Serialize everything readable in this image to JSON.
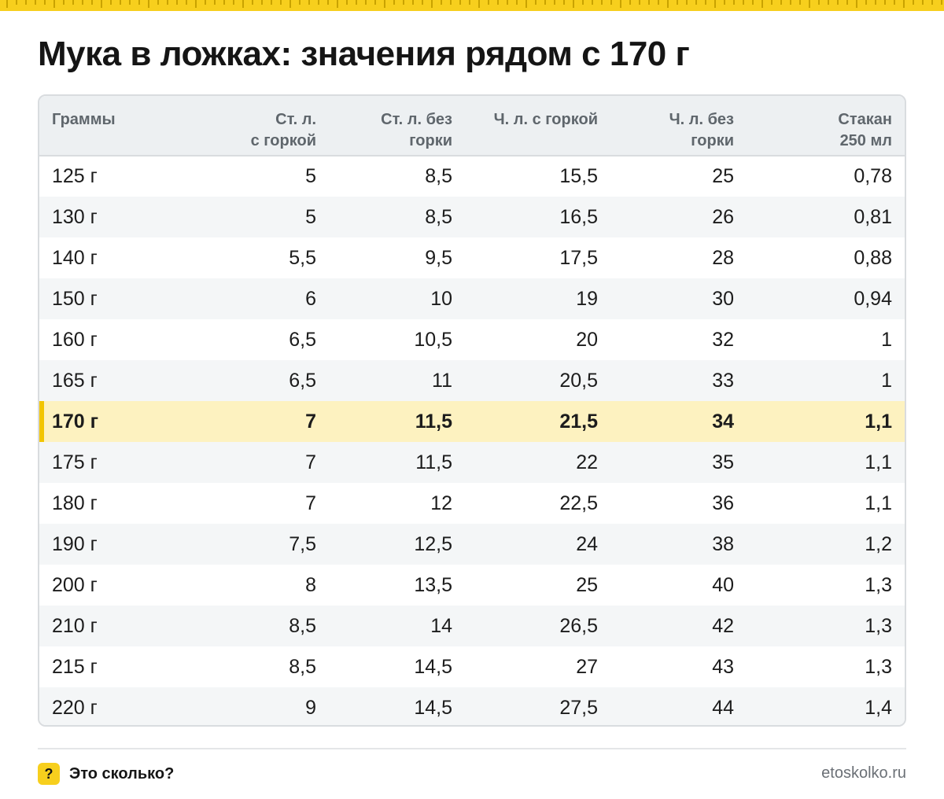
{
  "title": "Мука в ложках: значения рядом с 170 г",
  "colors": {
    "accent": "#f7cf1d",
    "highlight_row": "#fdf2c0",
    "header_bg": "#edf0f2",
    "stripe_bg": "#f4f6f7"
  },
  "table": {
    "headers": [
      [
        "Граммы"
      ],
      [
        "Ст. л.",
        "с горкой"
      ],
      [
        "Ст. л. без",
        "горки"
      ],
      [
        "Ч. л. с горкой"
      ],
      [
        "Ч. л. без",
        "горки"
      ],
      [
        "Стакан",
        "250 мл"
      ]
    ],
    "highlight_row_index": 6,
    "rows": [
      [
        "125 г",
        "5",
        "8,5",
        "15,5",
        "25",
        "0,78"
      ],
      [
        "130 г",
        "5",
        "8,5",
        "16,5",
        "26",
        "0,81"
      ],
      [
        "140 г",
        "5,5",
        "9,5",
        "17,5",
        "28",
        "0,88"
      ],
      [
        "150 г",
        "6",
        "10",
        "19",
        "30",
        "0,94"
      ],
      [
        "160 г",
        "6,5",
        "10,5",
        "20",
        "32",
        "1"
      ],
      [
        "165 г",
        "6,5",
        "11",
        "20,5",
        "33",
        "1"
      ],
      [
        "170 г",
        "7",
        "11,5",
        "21,5",
        "34",
        "1,1"
      ],
      [
        "175 г",
        "7",
        "11,5",
        "22",
        "35",
        "1,1"
      ],
      [
        "180 г",
        "7",
        "12",
        "22,5",
        "36",
        "1,1"
      ],
      [
        "190 г",
        "7,5",
        "12,5",
        "24",
        "38",
        "1,2"
      ],
      [
        "200 г",
        "8",
        "13,5",
        "25",
        "40",
        "1,3"
      ],
      [
        "210 г",
        "8,5",
        "14",
        "26,5",
        "42",
        "1,3"
      ],
      [
        "215 г",
        "8,5",
        "14,5",
        "27",
        "43",
        "1,3"
      ],
      [
        "220 г",
        "9",
        "14,5",
        "27,5",
        "44",
        "1,4"
      ]
    ]
  },
  "footer": {
    "badge_icon": "question-mark-icon",
    "badge_text": "?",
    "brand": "Это сколько?",
    "site": "etoskolko.ru"
  }
}
